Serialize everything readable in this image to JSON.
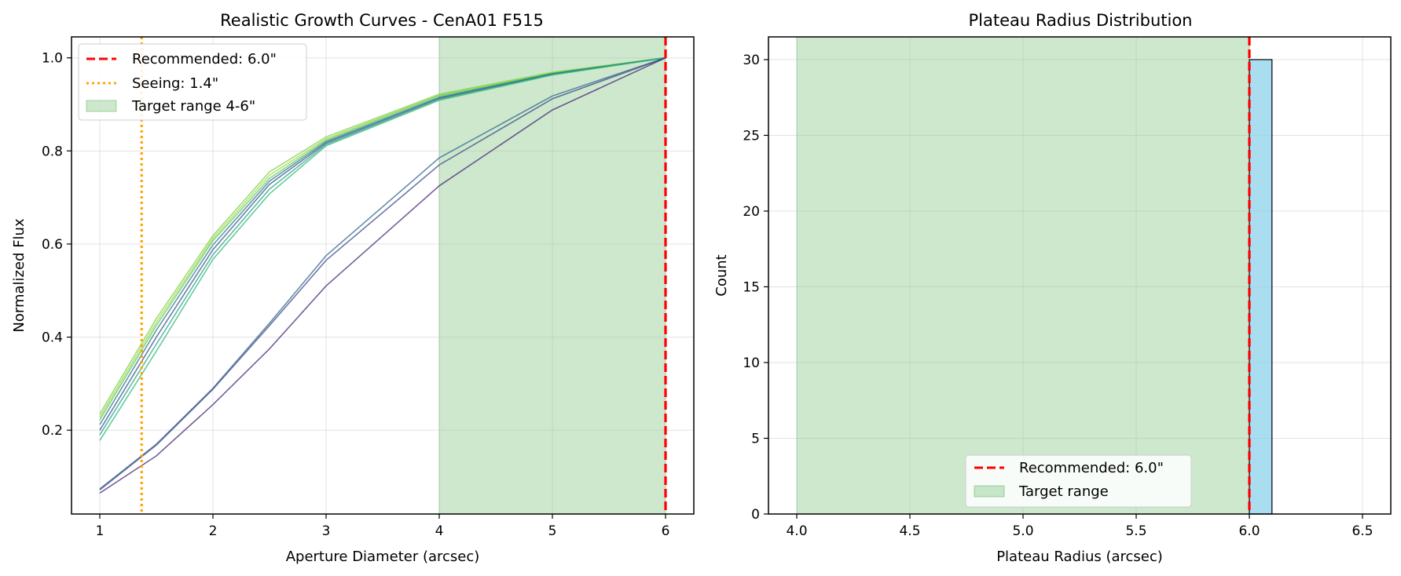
{
  "chart_data": [
    {
      "type": "line",
      "title": "Realistic Growth Curves - CenA01 F515",
      "xlabel": "Aperture Diameter (arcsec)",
      "ylabel": "Normalized Flux",
      "xlim": [
        0.75,
        6.25
      ],
      "ylim": [
        0.02,
        1.045
      ],
      "x_ticks": [
        1,
        2,
        3,
        4,
        5,
        6
      ],
      "y_ticks": [
        0.2,
        0.4,
        0.6,
        0.8,
        1.0
      ],
      "y_tick_labels": [
        "0.2",
        "0.4",
        "0.6",
        "0.8",
        "1.0"
      ],
      "grid": true,
      "legend_position": "upper left",
      "x": [
        1,
        1.5,
        2,
        2.5,
        3,
        4,
        5,
        6
      ],
      "series": [
        {
          "color": "#7ad151",
          "values": [
            0.235,
            0.44,
            0.618,
            0.755,
            0.83,
            0.922,
            0.969,
            1.0
          ]
        },
        {
          "color": "#a0da39",
          "values": [
            0.228,
            0.432,
            0.612,
            0.748,
            0.826,
            0.92,
            0.968,
            1.0
          ]
        },
        {
          "color": "#5ec962",
          "values": [
            0.222,
            0.425,
            0.607,
            0.741,
            0.823,
            0.918,
            0.967,
            1.0
          ]
        },
        {
          "color": "#2a788e",
          "values": [
            0.212,
            0.415,
            0.598,
            0.735,
            0.82,
            0.915,
            0.966,
            1.0
          ]
        },
        {
          "color": "#3b528b",
          "values": [
            0.2,
            0.4,
            0.588,
            0.728,
            0.817,
            0.913,
            0.965,
            1.0
          ]
        },
        {
          "color": "#22a884",
          "values": [
            0.19,
            0.385,
            0.577,
            0.718,
            0.814,
            0.911,
            0.964,
            1.0
          ]
        },
        {
          "color": "#35b779",
          "values": [
            0.178,
            0.37,
            0.567,
            0.708,
            0.811,
            0.909,
            0.963,
            1.0
          ]
        },
        {
          "color": "#31688e",
          "values": [
            0.074,
            0.17,
            0.29,
            0.43,
            0.575,
            0.785,
            0.918,
            1.0
          ]
        },
        {
          "color": "#3e4a89",
          "values": [
            0.072,
            0.168,
            0.288,
            0.425,
            0.565,
            0.77,
            0.912,
            1.0
          ]
        },
        {
          "color": "#482878",
          "values": [
            0.065,
            0.145,
            0.255,
            0.375,
            0.51,
            0.725,
            0.888,
            1.0
          ]
        }
      ],
      "vlines": [
        {
          "x": 6.0,
          "color": "#ff0000",
          "style": "dashed",
          "label": "Recommended: 6.0\""
        },
        {
          "x": 1.37,
          "color": "#ffa500",
          "style": "dotted",
          "label": "Seeing: 1.4\""
        }
      ],
      "span": {
        "x0": 4,
        "x1": 6,
        "color": "#2ca02c",
        "label": "Target range 4-6\""
      }
    },
    {
      "type": "bar",
      "title": "Plateau Radius Distribution",
      "xlabel": "Plateau Radius (arcsec)",
      "ylabel": "Count",
      "xlim": [
        3.875,
        6.625
      ],
      "ylim": [
        0,
        31.5
      ],
      "x_ticks": [
        4.0,
        4.5,
        5.0,
        5.5,
        6.0,
        6.5
      ],
      "x_tick_labels": [
        "4.0",
        "4.5",
        "5.0",
        "5.5",
        "6.0",
        "6.5"
      ],
      "y_ticks": [
        0,
        5,
        10,
        15,
        20,
        25,
        30
      ],
      "grid": true,
      "legend_position": "lower center",
      "bars": [
        {
          "x0": 6.0,
          "x1": 6.1,
          "count": 30,
          "color": "#87ceeb"
        }
      ],
      "vlines": [
        {
          "x": 6.0,
          "color": "#ff0000",
          "style": "dashed",
          "label": "Recommended: 6.0\""
        }
      ],
      "span": {
        "x0": 4,
        "x1": 6,
        "color": "#2ca02c",
        "label": "Target range"
      }
    }
  ]
}
